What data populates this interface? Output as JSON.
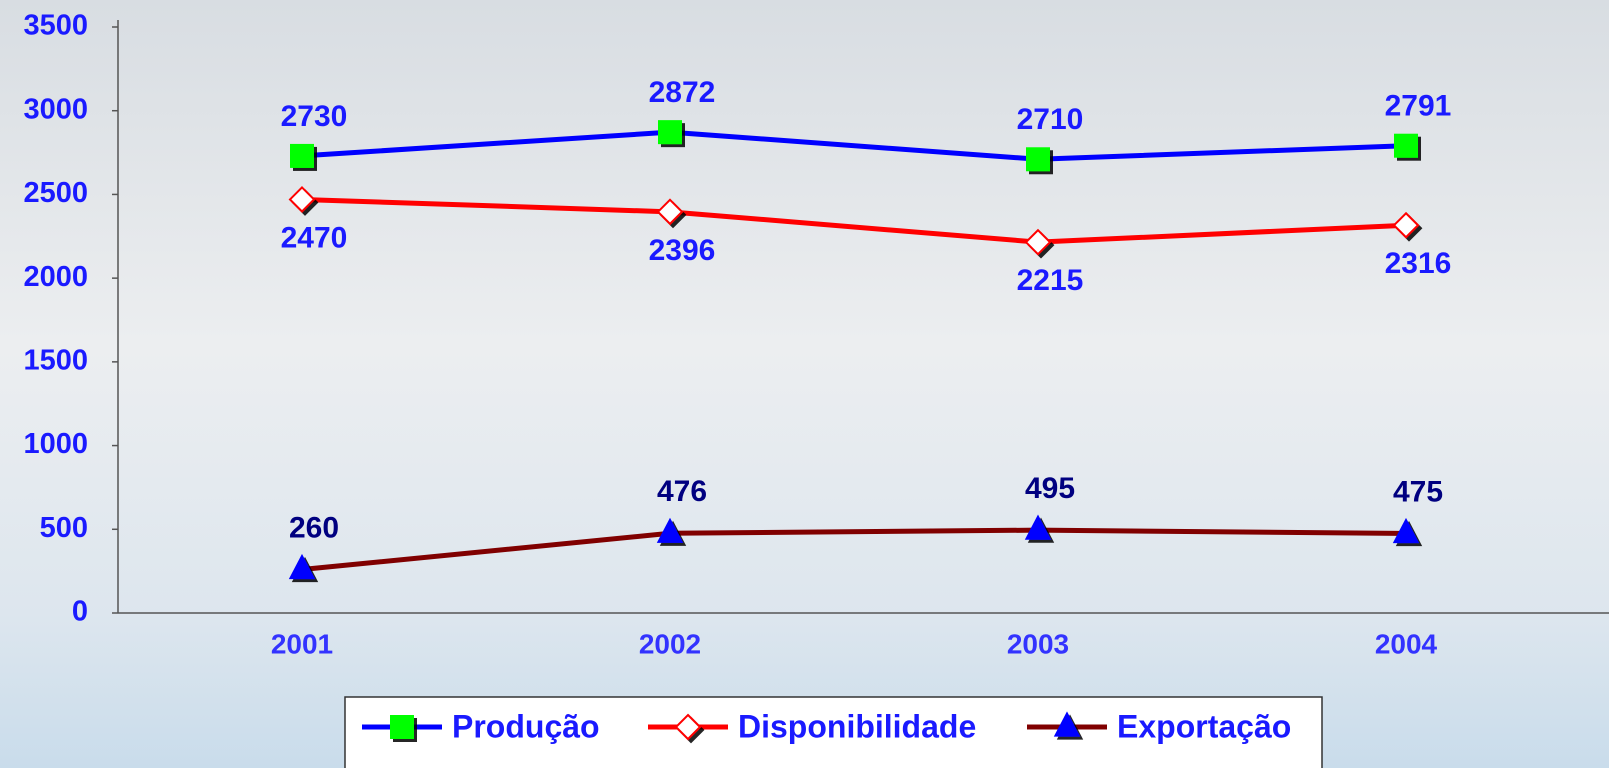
{
  "chart_data": {
    "type": "line",
    "categories": [
      "2001",
      "2002",
      "2003",
      "2004"
    ],
    "series": [
      {
        "name": "Produção",
        "color": "#0000ff",
        "marker": "square",
        "marker_color": "#00ff00",
        "label_color": "#1a1aff",
        "values": [
          2730,
          2872,
          2710,
          2791
        ]
      },
      {
        "name": "Disponibilidade",
        "color": "#ff0000",
        "marker": "diamond",
        "marker_color": "#ffffff",
        "label_color": "#1a1aff",
        "values": [
          2470,
          2396,
          2215,
          2316
        ]
      },
      {
        "name": "Exportação",
        "color": "#800000",
        "marker": "triangle",
        "marker_color": "#0000ff",
        "label_color": "#000080",
        "values": [
          260,
          476,
          495,
          475
        ]
      }
    ],
    "ylim": [
      0,
      3500
    ],
    "yticks": [
      0,
      500,
      1000,
      1500,
      2000,
      2500,
      3000,
      3500
    ],
    "legend": "bottom"
  }
}
